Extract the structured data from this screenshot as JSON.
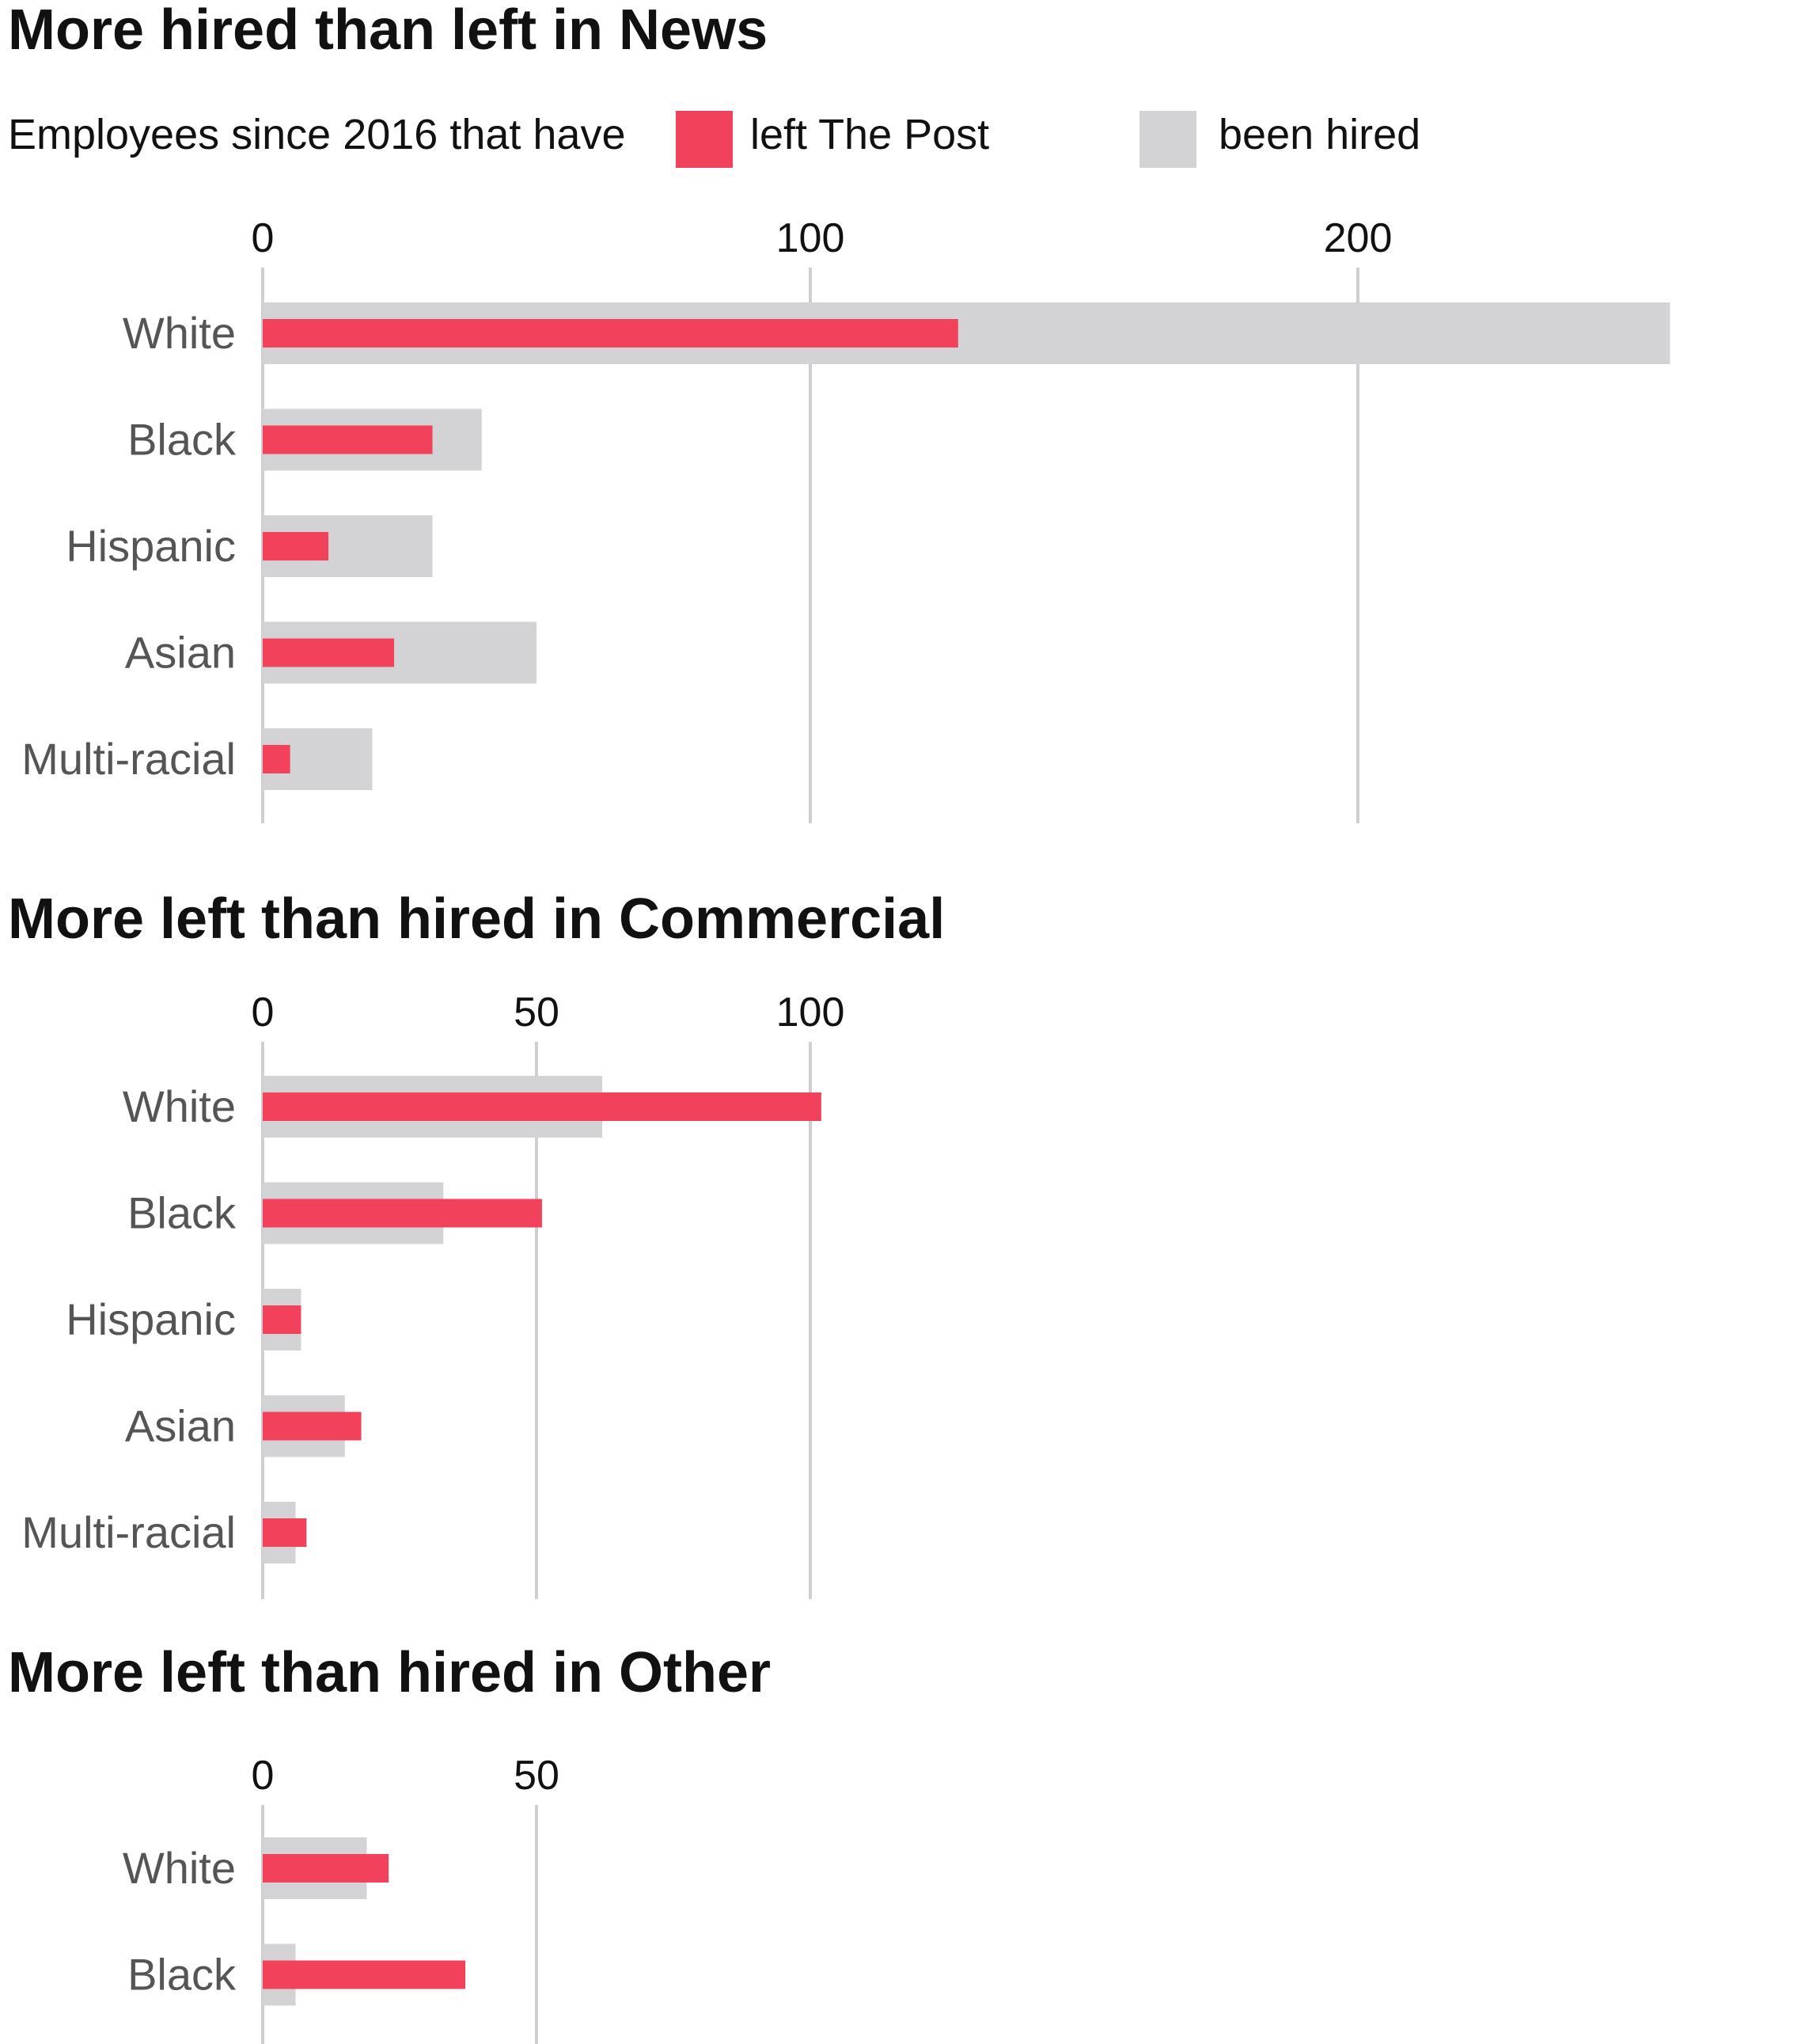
{
  "legend": {
    "intro": "Employees since 2016 that have",
    "left_label": "left The Post",
    "hired_label": "been hired",
    "left_color": "#f1415b",
    "hired_color": "#d3d3d5"
  },
  "chart_data": [
    {
      "type": "bar",
      "orientation": "horizontal",
      "title": "More hired than left in News",
      "categories": [
        "White",
        "Black",
        "Hispanic",
        "Asian",
        "Multi-racial"
      ],
      "series": [
        {
          "name": "been hired",
          "values": [
            257,
            40,
            31,
            50,
            20
          ]
        },
        {
          "name": "left The Post",
          "values": [
            127,
            31,
            12,
            24,
            5
          ]
        }
      ],
      "xlim": [
        0,
        257
      ],
      "ticks": [
        0,
        100,
        200
      ],
      "grid": true
    },
    {
      "type": "bar",
      "orientation": "horizontal",
      "title": "More left than hired in Commercial",
      "categories": [
        "White",
        "Black",
        "Hispanic",
        "Asian",
        "Multi-racial"
      ],
      "series": [
        {
          "name": "been hired",
          "values": [
            62,
            33,
            7,
            15,
            6
          ]
        },
        {
          "name": "left The Post",
          "values": [
            102,
            51,
            7,
            18,
            8
          ]
        }
      ],
      "xlim": [
        0,
        102
      ],
      "ticks": [
        0,
        50,
        100
      ],
      "grid": true
    },
    {
      "type": "bar",
      "orientation": "horizontal",
      "title": "More left than hired in Other",
      "categories": [
        "White",
        "Black"
      ],
      "series": [
        {
          "name": "been hired",
          "values": [
            19,
            6
          ]
        },
        {
          "name": "left The Post",
          "values": [
            23,
            37
          ]
        }
      ],
      "xlim": [
        0,
        37
      ],
      "ticks": [
        0,
        50
      ],
      "grid": true
    }
  ]
}
